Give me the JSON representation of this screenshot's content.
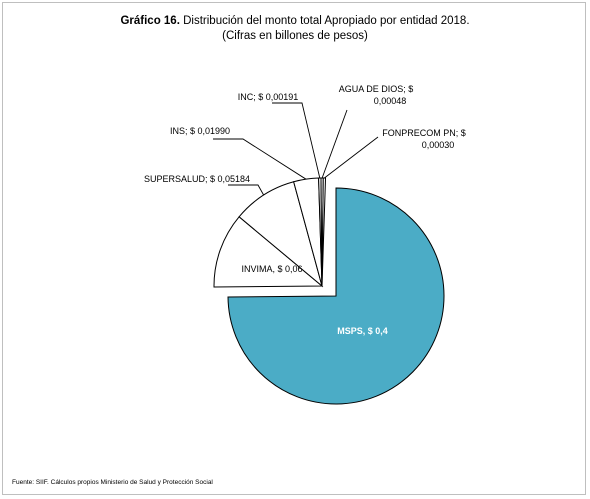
{
  "chart_data": {
    "type": "pie",
    "title_bold": "Gráfico 16.",
    "title_rest": "Distribución del monto total Apropiado por entidad  2018.",
    "subtitle": "(Cifras en billones de pesos)",
    "slices": [
      {
        "name": "MSPS",
        "label": "MSPS,  $ 0,4",
        "value": 0.4,
        "color": "#4bacc6",
        "exploded": true
      },
      {
        "name": "INVIMA",
        "label": "INVIMA,  $ 0,06",
        "value": 0.06,
        "color": "#ffffff",
        "exploded": false
      },
      {
        "name": "SUPERSALUD",
        "label": "SUPERSALUD;  $ 0,05184",
        "value": 0.05184,
        "color": "#ffffff",
        "exploded": false
      },
      {
        "name": "INS",
        "label": "INS;  $ 0,01990",
        "value": 0.0199,
        "color": "#ffffff",
        "exploded": false
      },
      {
        "name": "INC",
        "label": "INC;  $ 0,00191",
        "value": 0.00191,
        "color": "#ffffff",
        "exploded": false
      },
      {
        "name": "AGUA DE DIOS",
        "label": [
          "AGUA DE DIOS;  $",
          "0,00048"
        ],
        "value": 0.00048,
        "color": "#ffffff",
        "exploded": false
      },
      {
        "name": "FONPRECOM PN",
        "label": [
          "FONPRECOM PN;  $",
          "0,00030"
        ],
        "value": 0.0003,
        "color": "#ffffff",
        "exploded": false
      }
    ]
  },
  "source": "Fuente: SIIF. Cálculos propios Ministerio de Salud y Protección Social"
}
